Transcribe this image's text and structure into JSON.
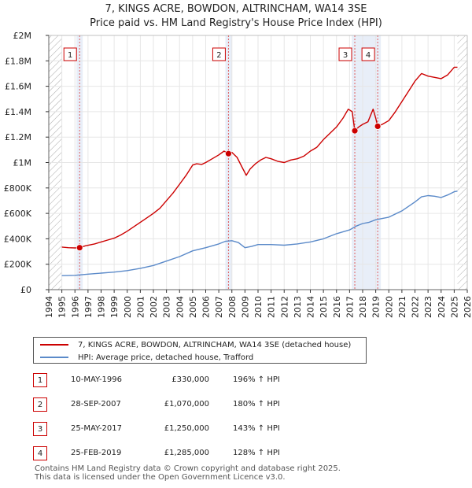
{
  "header": {
    "title": "7, KINGS ACRE, BOWDON, ALTRINCHAM, WA14 3SE",
    "subtitle": "Price paid vs. HM Land Registry's House Price Index (HPI)"
  },
  "colors": {
    "property": "#cc0000",
    "hpi": "#5b8ac9",
    "sale_line": "#e06060",
    "shade": "#e8eef8",
    "hatch": "#aaaaaa",
    "grid": "#e6e6e6"
  },
  "chart_data": {
    "type": "line",
    "title": "Price paid vs. HM Land Registry's House Price Index (HPI)",
    "xlabel": "",
    "ylabel": "",
    "xlim": [
      1994,
      2026
    ],
    "ylim": [
      0,
      2000000
    ],
    "x_ticks": [
      1994,
      1995,
      1996,
      1997,
      1998,
      1999,
      2000,
      2001,
      2002,
      2003,
      2004,
      2005,
      2006,
      2007,
      2008,
      2009,
      2010,
      2011,
      2012,
      2013,
      2014,
      2015,
      2016,
      2017,
      2018,
      2019,
      2020,
      2021,
      2022,
      2023,
      2024,
      2025,
      2026
    ],
    "y_ticks": [
      {
        "value": 0,
        "label": "£0"
      },
      {
        "value": 200000,
        "label": "£200K"
      },
      {
        "value": 400000,
        "label": "£400K"
      },
      {
        "value": 600000,
        "label": "£600K"
      },
      {
        "value": 800000,
        "label": "£800K"
      },
      {
        "value": 1000000,
        "label": "£1M"
      },
      {
        "value": 1200000,
        "label": "£1.2M"
      },
      {
        "value": 1400000,
        "label": "£1.4M"
      },
      {
        "value": 1600000,
        "label": "£1.6M"
      },
      {
        "value": 1800000,
        "label": "£1.8M"
      },
      {
        "value": 2000000,
        "label": "£2M"
      }
    ],
    "data_start": 1995.0,
    "data_end": 2025.25,
    "grid": true,
    "series": [
      {
        "name": "7, KINGS ACRE, BOWDON, ALTRINCHAM, WA14 3SE (detached house)",
        "color": "#cc0000",
        "points": [
          [
            1995.0,
            335000
          ],
          [
            1995.5,
            330000
          ],
          [
            1996.0,
            328000
          ],
          [
            1996.36,
            330000
          ],
          [
            1996.8,
            345000
          ],
          [
            1997.5,
            360000
          ],
          [
            1998.0,
            375000
          ],
          [
            1998.5,
            390000
          ],
          [
            1999.0,
            405000
          ],
          [
            1999.5,
            430000
          ],
          [
            2000.0,
            460000
          ],
          [
            2000.5,
            495000
          ],
          [
            2001.0,
            530000
          ],
          [
            2001.5,
            565000
          ],
          [
            2002.0,
            600000
          ],
          [
            2002.5,
            640000
          ],
          [
            2003.0,
            700000
          ],
          [
            2003.5,
            760000
          ],
          [
            2004.0,
            830000
          ],
          [
            2004.5,
            900000
          ],
          [
            2005.0,
            980000
          ],
          [
            2005.3,
            990000
          ],
          [
            2005.7,
            985000
          ],
          [
            2006.0,
            1000000
          ],
          [
            2006.5,
            1030000
          ],
          [
            2007.0,
            1060000
          ],
          [
            2007.4,
            1090000
          ],
          [
            2007.74,
            1070000
          ],
          [
            2008.0,
            1080000
          ],
          [
            2008.4,
            1040000
          ],
          [
            2008.8,
            960000
          ],
          [
            2009.1,
            900000
          ],
          [
            2009.4,
            950000
          ],
          [
            2009.8,
            990000
          ],
          [
            2010.2,
            1020000
          ],
          [
            2010.6,
            1040000
          ],
          [
            2011.0,
            1030000
          ],
          [
            2011.5,
            1010000
          ],
          [
            2012.0,
            1000000
          ],
          [
            2012.5,
            1020000
          ],
          [
            2013.0,
            1030000
          ],
          [
            2013.5,
            1050000
          ],
          [
            2014.0,
            1090000
          ],
          [
            2014.5,
            1120000
          ],
          [
            2015.0,
            1180000
          ],
          [
            2015.5,
            1230000
          ],
          [
            2016.0,
            1280000
          ],
          [
            2016.5,
            1350000
          ],
          [
            2016.9,
            1420000
          ],
          [
            2017.2,
            1400000
          ],
          [
            2017.4,
            1250000
          ],
          [
            2017.7,
            1280000
          ],
          [
            2018.0,
            1300000
          ],
          [
            2018.4,
            1320000
          ],
          [
            2018.8,
            1420000
          ],
          [
            2019.0,
            1350000
          ],
          [
            2019.15,
            1285000
          ],
          [
            2019.5,
            1300000
          ],
          [
            2020.0,
            1330000
          ],
          [
            2020.5,
            1400000
          ],
          [
            2021.0,
            1480000
          ],
          [
            2021.5,
            1560000
          ],
          [
            2022.0,
            1640000
          ],
          [
            2022.5,
            1700000
          ],
          [
            2023.0,
            1680000
          ],
          [
            2023.5,
            1670000
          ],
          [
            2024.0,
            1660000
          ],
          [
            2024.5,
            1690000
          ],
          [
            2025.0,
            1750000
          ],
          [
            2025.25,
            1750000
          ]
        ]
      },
      {
        "name": "HPI: Average price, detached house, Trafford",
        "color": "#5b8ac9",
        "points": [
          [
            1995.0,
            110000
          ],
          [
            1996.0,
            113000
          ],
          [
            1997.0,
            122000
          ],
          [
            1998.0,
            130000
          ],
          [
            1999.0,
            138000
          ],
          [
            2000.0,
            150000
          ],
          [
            2001.0,
            168000
          ],
          [
            2002.0,
            190000
          ],
          [
            2003.0,
            225000
          ],
          [
            2004.0,
            260000
          ],
          [
            2005.0,
            305000
          ],
          [
            2006.0,
            330000
          ],
          [
            2007.0,
            360000
          ],
          [
            2007.5,
            380000
          ],
          [
            2008.0,
            385000
          ],
          [
            2008.5,
            370000
          ],
          [
            2009.0,
            330000
          ],
          [
            2009.5,
            340000
          ],
          [
            2010.0,
            355000
          ],
          [
            2011.0,
            355000
          ],
          [
            2012.0,
            350000
          ],
          [
            2013.0,
            360000
          ],
          [
            2014.0,
            375000
          ],
          [
            2015.0,
            400000
          ],
          [
            2016.0,
            440000
          ],
          [
            2017.0,
            470000
          ],
          [
            2017.5,
            500000
          ],
          [
            2018.0,
            520000
          ],
          [
            2018.5,
            530000
          ],
          [
            2019.0,
            550000
          ],
          [
            2020.0,
            570000
          ],
          [
            2021.0,
            620000
          ],
          [
            2022.0,
            690000
          ],
          [
            2022.5,
            730000
          ],
          [
            2023.0,
            740000
          ],
          [
            2023.5,
            735000
          ],
          [
            2024.0,
            725000
          ],
          [
            2024.5,
            745000
          ],
          [
            2025.0,
            770000
          ],
          [
            2025.25,
            775000
          ]
        ]
      }
    ],
    "sales": [
      {
        "id": "1",
        "x": 1996.36,
        "price": 330000
      },
      {
        "id": "2",
        "x": 2007.74,
        "price": 1070000
      },
      {
        "id": "3",
        "x": 2017.4,
        "price": 1250000
      },
      {
        "id": "4",
        "x": 2019.15,
        "price": 1285000
      }
    ]
  },
  "legend": {
    "items": [
      {
        "label": "7, KINGS ACRE, BOWDON, ALTRINCHAM, WA14 3SE (detached house)",
        "color": "#cc0000"
      },
      {
        "label": "HPI: Average price, detached house, Trafford",
        "color": "#5b8ac9"
      }
    ]
  },
  "sales_table": [
    {
      "num": "1",
      "date": "10-MAY-1996",
      "price": "£330,000",
      "hpi": "196% ↑ HPI"
    },
    {
      "num": "2",
      "date": "28-SEP-2007",
      "price": "£1,070,000",
      "hpi": "180% ↑ HPI"
    },
    {
      "num": "3",
      "date": "25-MAY-2017",
      "price": "£1,250,000",
      "hpi": "143% ↑ HPI"
    },
    {
      "num": "4",
      "date": "25-FEB-2019",
      "price": "£1,285,000",
      "hpi": "128% ↑ HPI"
    }
  ],
  "footer": {
    "line1": "Contains HM Land Registry data © Crown copyright and database right 2025.",
    "line2": "This data is licensed under the Open Government Licence v3.0."
  }
}
